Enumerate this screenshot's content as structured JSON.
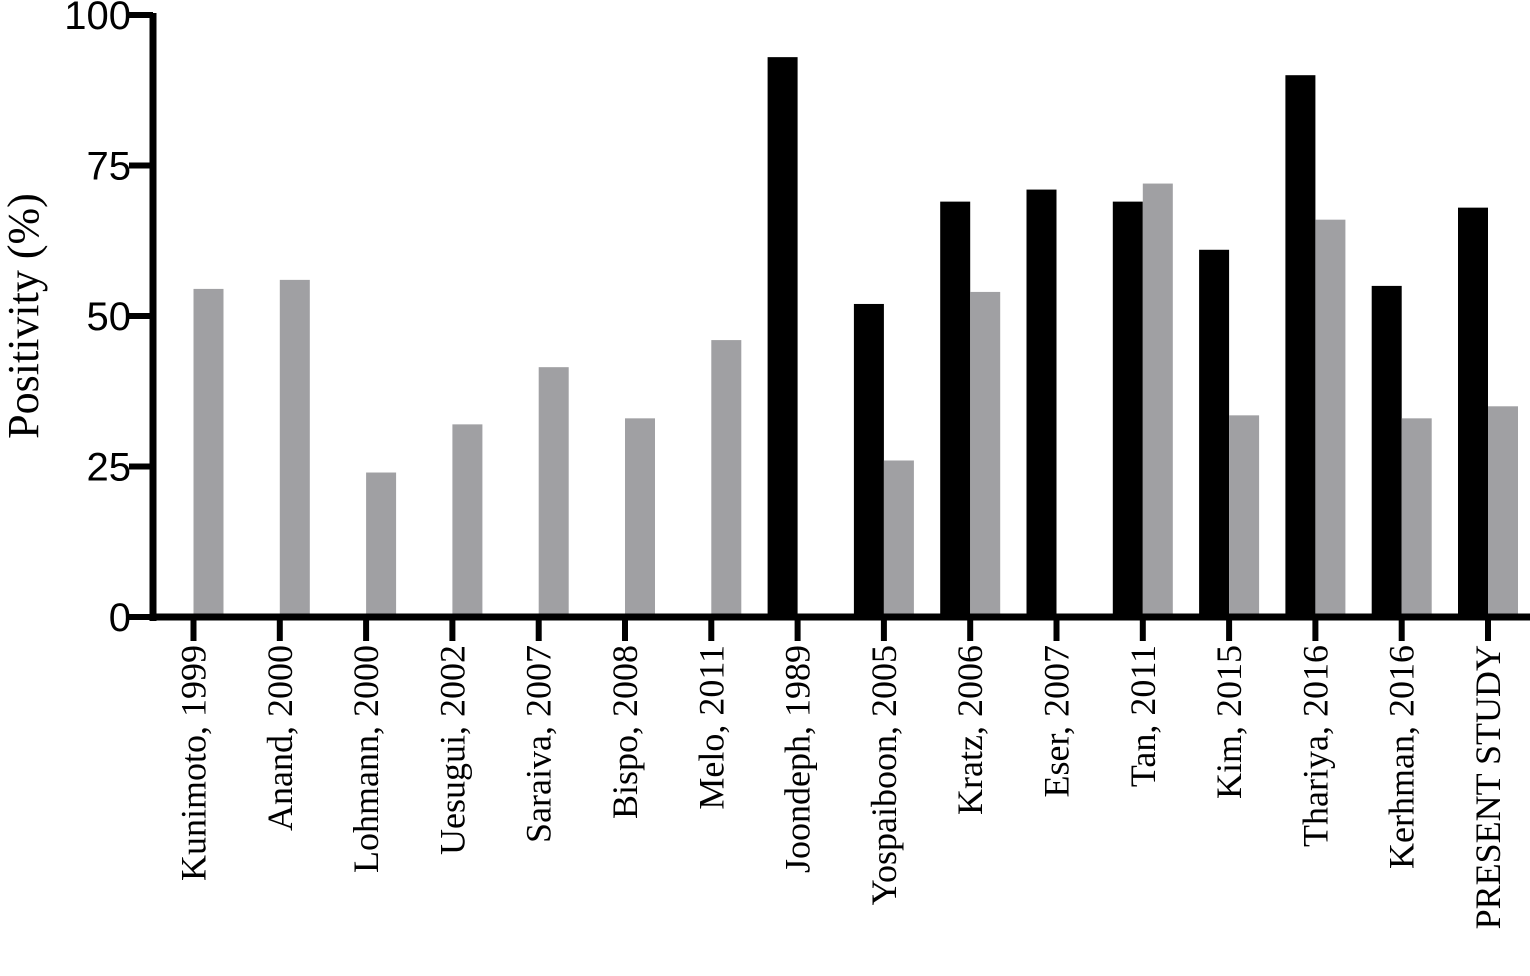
{
  "chart_data": {
    "type": "bar",
    "title": "",
    "xlabel": "",
    "ylabel": "Positivity (%)",
    "ylim": [
      0,
      100
    ],
    "yticks": [
      "0",
      "25",
      "50",
      "75",
      "100"
    ],
    "grid": false,
    "legend": "none",
    "categories": [
      "Kunimoto, 1999",
      "Anand, 2000",
      "Lohmann, 2000",
      "Uesugui, 2002",
      "Saraiva, 2007",
      "Bispo, 2008",
      "Melo, 2011",
      "Joondeph, 1989",
      "Yospaiboon, 2005",
      "Kratz, 2006",
      "Eser, 2007",
      "Tan, 2011",
      "Kim, 2015",
      "Thariya, 2016",
      "Kerhman, 2016",
      "PRESENT STUDY"
    ],
    "series": [
      {
        "color": "#000000",
        "values": [
          0,
          0,
          0,
          0,
          0,
          0,
          0,
          93,
          52,
          69,
          71,
          69,
          61,
          90,
          55,
          68
        ]
      },
      {
        "color": "#a0a0a3",
        "values": [
          54.5,
          56,
          24,
          32,
          41.5,
          33,
          46,
          0,
          26,
          54,
          null,
          72,
          33.5,
          66,
          33,
          35
        ]
      }
    ]
  }
}
